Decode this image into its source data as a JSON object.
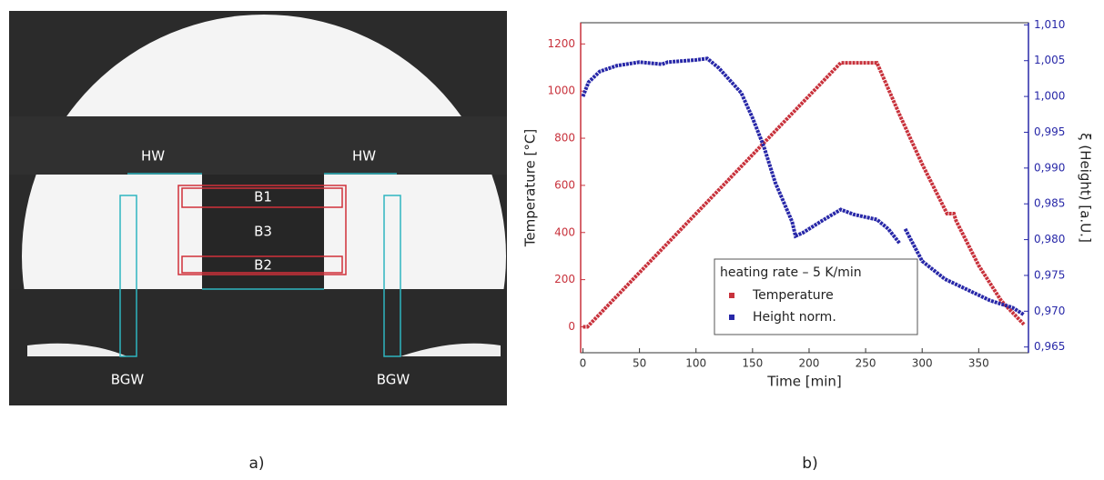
{
  "panel_a": {
    "labels": {
      "hw_left": "HW",
      "hw_right": "HW",
      "b1": "B1",
      "b3": "B3",
      "b2": "B2",
      "bgw_left": "BGW",
      "bgw_right": "BGW"
    }
  },
  "captions": [
    "a)",
    "b)"
  ],
  "chart_data": {
    "type": "line",
    "xlabel": "Time [min]",
    "ylabel": "Temperature [°C]",
    "y2label": "ξ (Height) [a.U.]",
    "xlim": [
      -2,
      394
    ],
    "xticks": [
      0,
      50,
      100,
      150,
      200,
      250,
      300,
      350
    ],
    "ylim": [
      -110,
      1290
    ],
    "yticks": [
      0,
      200,
      400,
      600,
      800,
      1000,
      1200
    ],
    "y2lim": [
      0.9642,
      1.0103
    ],
    "y2ticks": [
      {
        "value": 0.965,
        "label": "0,965"
      },
      {
        "value": 0.97,
        "label": "0,970"
      },
      {
        "value": 0.975,
        "label": "0,975"
      },
      {
        "value": 0.98,
        "label": "0,980"
      },
      {
        "value": 0.985,
        "label": "0,985"
      },
      {
        "value": 0.99,
        "label": "0,990"
      },
      {
        "value": 0.995,
        "label": "0,995"
      },
      {
        "value": 1.0,
        "label": "1,000"
      },
      {
        "value": 1.005,
        "label": "1,005"
      },
      {
        "value": 1.01,
        "label": "1,010"
      }
    ],
    "legend_title": "heating rate – 5 K/min",
    "legend_position": "lower right",
    "series": [
      {
        "name": "Temperature",
        "color": "#c8323c",
        "axis": "y",
        "x": [
          0,
          4,
          25,
          50,
          75,
          100,
          125,
          150,
          175,
          200,
          228,
          260,
          280,
          300,
          322,
          328,
          330,
          350,
          370,
          390
        ],
        "values": [
          0,
          0,
          105,
          230,
          355,
          480,
          605,
          730,
          855,
          980,
          1120,
          1120,
          900,
          690,
          480,
          480,
          450,
          260,
          110,
          10
        ]
      },
      {
        "name": "Height norm.",
        "color": "#2828a8",
        "axis": "y2",
        "x": [
          0,
          5,
          15,
          30,
          50,
          70,
          75,
          100,
          110,
          120,
          140,
          150,
          160,
          170,
          185,
          188,
          195,
          210,
          228,
          240,
          260,
          270,
          280,
          282,
          285,
          300,
          320,
          340,
          360,
          380,
          390
        ],
        "values": [
          1.0,
          1.002,
          1.0035,
          1.0043,
          1.0048,
          1.0045,
          1.0048,
          1.0051,
          1.0053,
          1.004,
          1.0005,
          0.997,
          0.993,
          0.988,
          0.9825,
          0.9805,
          0.981,
          0.9825,
          0.9842,
          0.9835,
          0.9828,
          0.9815,
          0.9795,
          null,
          0.9815,
          0.977,
          0.9745,
          0.973,
          0.9715,
          0.9705,
          0.9695
        ]
      }
    ]
  }
}
